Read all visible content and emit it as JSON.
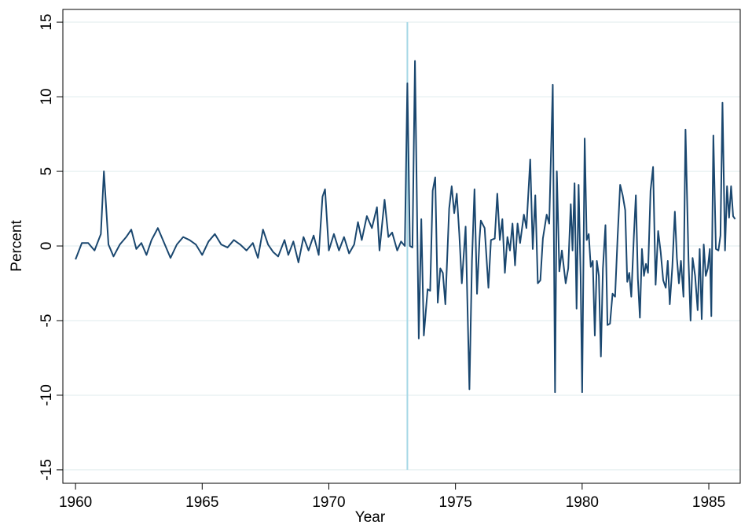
{
  "chart_data": {
    "type": "line",
    "xlabel": "Year",
    "ylabel": "Percent",
    "color": "#1a476f",
    "xline": {
      "value": 1973.1,
      "color": "#a6d8e6"
    },
    "grid": true,
    "xlim": [
      1959.5,
      1986.24
    ],
    "ylim": [
      -15.9,
      15.85
    ],
    "xticks": [
      1960,
      1965,
      1970,
      1975,
      1980,
      1985
    ],
    "yticks": [
      -15,
      -10,
      -5,
      0,
      5,
      10,
      15
    ],
    "x": [
      1960.0,
      1960.25,
      1960.5,
      1960.75,
      1961.0,
      1961.12,
      1961.3,
      1961.5,
      1961.75,
      1962.0,
      1962.2,
      1962.4,
      1962.6,
      1962.8,
      1963.0,
      1963.25,
      1963.5,
      1963.75,
      1964.0,
      1964.25,
      1964.5,
      1964.75,
      1965.0,
      1965.25,
      1965.5,
      1965.75,
      1966.0,
      1966.25,
      1966.5,
      1966.75,
      1967.0,
      1967.2,
      1967.4,
      1967.6,
      1967.8,
      1968.0,
      1968.25,
      1968.4,
      1968.6,
      1968.8,
      1969.0,
      1969.2,
      1969.4,
      1969.6,
      1969.75,
      1969.85,
      1970.0,
      1970.2,
      1970.4,
      1970.6,
      1970.8,
      1971.0,
      1971.15,
      1971.3,
      1971.5,
      1971.7,
      1971.9,
      1972.0,
      1972.2,
      1972.35,
      1972.5,
      1972.7,
      1972.85,
      1973.0,
      1973.1,
      1973.2,
      1973.3,
      1973.4,
      1973.55,
      1973.65,
      1973.75,
      1973.9,
      1974.0,
      1974.1,
      1974.2,
      1974.3,
      1974.4,
      1974.5,
      1974.6,
      1974.75,
      1974.85,
      1974.95,
      1975.05,
      1975.15,
      1975.25,
      1975.4,
      1975.55,
      1975.65,
      1975.75,
      1975.85,
      1975.95,
      1976.0,
      1976.15,
      1976.3,
      1976.4,
      1976.55,
      1976.65,
      1976.75,
      1976.85,
      1976.95,
      1977.05,
      1977.15,
      1977.25,
      1977.35,
      1977.45,
      1977.55,
      1977.7,
      1977.8,
      1977.95,
      1978.05,
      1978.15,
      1978.25,
      1978.35,
      1978.45,
      1978.6,
      1978.7,
      1978.84,
      1978.93,
      1979.0,
      1979.1,
      1979.2,
      1979.35,
      1979.45,
      1979.55,
      1979.62,
      1979.7,
      1979.78,
      1979.86,
      1979.94,
      1980.0,
      1980.1,
      1980.18,
      1980.26,
      1980.34,
      1980.42,
      1980.5,
      1980.58,
      1980.66,
      1980.74,
      1980.82,
      1980.92,
      1981.0,
      1981.1,
      1981.2,
      1981.3,
      1981.4,
      1981.5,
      1981.6,
      1981.7,
      1981.78,
      1981.86,
      1981.94,
      1982.04,
      1982.12,
      1982.2,
      1982.28,
      1982.36,
      1982.44,
      1982.52,
      1982.6,
      1982.7,
      1982.8,
      1982.9,
      1983.0,
      1983.1,
      1983.2,
      1983.3,
      1983.38,
      1983.46,
      1983.56,
      1983.66,
      1983.74,
      1983.82,
      1983.9,
      1984.0,
      1984.08,
      1984.2,
      1984.28,
      1984.36,
      1984.46,
      1984.56,
      1984.64,
      1984.72,
      1984.8,
      1984.88,
      1984.96,
      1985.04,
      1985.1,
      1985.18,
      1985.28,
      1985.38,
      1985.46,
      1985.54,
      1985.64,
      1985.72,
      1985.8,
      1985.88,
      1985.96,
      1986.04
    ],
    "values": [
      -0.9,
      0.2,
      0.2,
      -0.3,
      0.8,
      5.0,
      0.1,
      -0.7,
      0.1,
      0.6,
      1.1,
      -0.2,
      0.2,
      -0.6,
      0.4,
      1.2,
      0.2,
      -0.8,
      0.1,
      0.6,
      0.4,
      0.1,
      -0.6,
      0.3,
      0.8,
      0.1,
      -0.1,
      0.4,
      0.1,
      -0.3,
      0.2,
      -0.8,
      1.1,
      0.1,
      -0.4,
      -0.7,
      0.4,
      -0.6,
      0.3,
      -1.1,
      0.6,
      -0.3,
      0.7,
      -0.6,
      3.3,
      3.8,
      -0.3,
      0.8,
      -0.3,
      0.6,
      -0.5,
      0.1,
      1.6,
      0.4,
      2.0,
      1.2,
      2.6,
      -0.3,
      3.1,
      0.6,
      0.9,
      -0.3,
      0.3,
      0.0,
      10.9,
      0.0,
      -0.1,
      12.4,
      -6.2,
      1.8,
      -6.0,
      -2.9,
      -3.0,
      3.7,
      4.6,
      -3.8,
      -1.5,
      -1.8,
      -3.9,
      2.5,
      4.0,
      2.2,
      3.5,
      0.8,
      -2.5,
      1.3,
      -9.6,
      -1.0,
      3.8,
      -3.2,
      0.5,
      1.7,
      1.2,
      -2.8,
      0.4,
      0.5,
      3.5,
      0.4,
      1.8,
      -1.8,
      0.6,
      -0.3,
      1.5,
      -1.3,
      1.5,
      0.2,
      2.1,
      1.2,
      5.8,
      -0.2,
      3.4,
      -2.5,
      -2.3,
      0.5,
      2.1,
      1.5,
      10.8,
      -9.8,
      5.0,
      -1.7,
      -0.3,
      -2.5,
      -1.5,
      2.8,
      -0.3,
      4.2,
      -4.2,
      4.1,
      -2.0,
      -9.8,
      7.2,
      0.4,
      0.8,
      -1.4,
      -1.0,
      -6.0,
      -1.0,
      -2.0,
      -7.4,
      -1.5,
      1.4,
      -5.3,
      -5.2,
      -3.2,
      -3.4,
      0.6,
      4.1,
      3.4,
      2.4,
      -2.4,
      -1.8,
      -3.4,
      0.6,
      3.4,
      -2.2,
      -4.8,
      -0.2,
      -2.0,
      -1.2,
      -1.8,
      3.7,
      5.3,
      -2.6,
      1.0,
      -0.4,
      -2.3,
      -2.8,
      -1.0,
      -3.9,
      -1.4,
      2.3,
      -0.8,
      -2.5,
      -1.0,
      -3.4,
      7.8,
      -1.0,
      -5.0,
      -0.8,
      -2.0,
      -4.3,
      -0.2,
      -4.9,
      0.1,
      -2.0,
      -1.5,
      -0.2,
      -4.7,
      7.4,
      -0.2,
      -0.3,
      0.7,
      9.6,
      -0.3,
      4.0,
      1.9,
      4.0,
      2.0,
      1.8
    ]
  }
}
